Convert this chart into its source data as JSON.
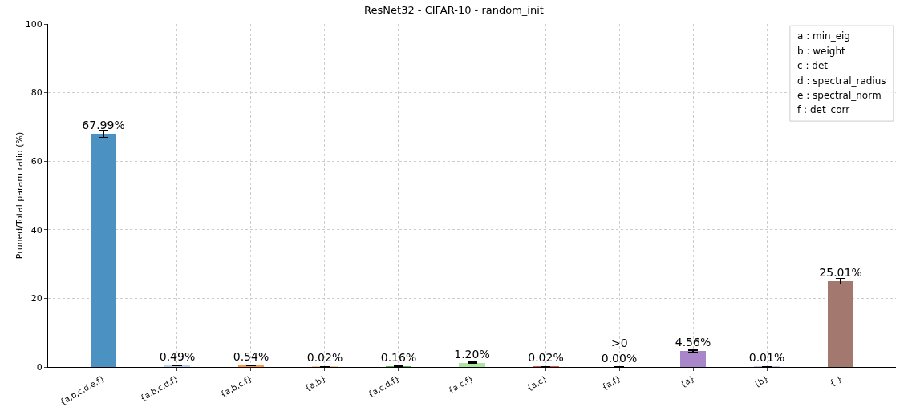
{
  "chart_data": {
    "type": "bar",
    "title": "ResNet32 - CIFAR-10 - random_init",
    "ylabel": "Pruned/Total param ratio (%)",
    "categories": [
      "{a,b,c,d,e,f}",
      "{a,b,c,d,f}",
      "{a,b,c,f}",
      "{a,b}",
      "{a,c,d,f}",
      "{a,c,f}",
      "{a,c}",
      "{a,f}",
      "{a}",
      "{b}",
      "{ }"
    ],
    "values": [
      67.99,
      0.49,
      0.54,
      0.02,
      0.16,
      1.2,
      0.02,
      0.0,
      4.56,
      0.01,
      25.01
    ],
    "colors": [
      "#4b92c3",
      "#bed2ed",
      "#ff9941",
      "#ffc993",
      "#56b356",
      "#ade5a1",
      "#de5253",
      "#ffadab",
      "#a985ca",
      "#d1c0dd",
      "#a3786f"
    ],
    "errors": [
      1.0,
      0.1,
      0.1,
      0.05,
      0.05,
      0.2,
      0.05,
      0.05,
      0.3,
      0.05,
      0.8
    ],
    "value_labels": [
      "67.99%",
      "0.49%",
      "0.54%",
      "0.02%",
      "0.16%",
      "1.20%",
      "0.02%",
      "0.00%",
      "4.56%",
      "0.01%",
      "25.01%"
    ],
    "annotations": [
      {
        "text": ">0",
        "x": "{a,f}",
        "y": 0.0
      },
      "a : min_eig",
      "b : weight",
      "c : det",
      "d : spectral_radius",
      "e : spectral_norm",
      "f : det_corr"
    ],
    "ylim": [
      0,
      100
    ],
    "yticks": [
      0,
      20,
      40,
      60,
      80,
      100
    ],
    "grid": true
  }
}
